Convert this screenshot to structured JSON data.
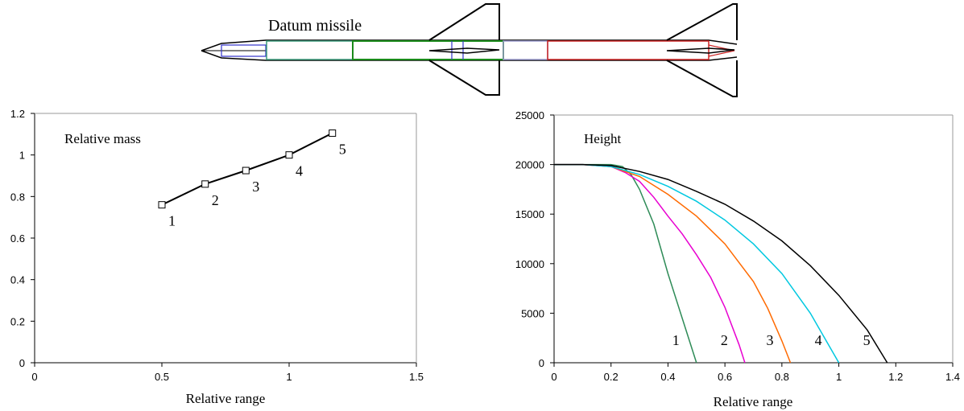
{
  "missile": {
    "title": "Datum missile",
    "colors": {
      "nose": "#3333cc",
      "section1": "#3a9a7a",
      "section2": "#1a8a1a",
      "section3": "#9999cc",
      "section4": "#cc2222",
      "outline": "#000000"
    }
  },
  "chart_data": [
    {
      "type": "line",
      "title": "Relative mass",
      "xlabel": "Relative range",
      "ylabel": "",
      "xlim": [
        0,
        1.5
      ],
      "ylim": [
        0,
        1.2
      ],
      "xticks": [
        "0",
        "0.5",
        "1",
        "1.5"
      ],
      "yticks": [
        "0",
        "0.2",
        "0.4",
        "0.6",
        "0.8",
        "1",
        "1.2"
      ],
      "grid": false,
      "marker": "square",
      "points": [
        {
          "label": "1",
          "x": 0.5,
          "y": 0.76
        },
        {
          "label": "2",
          "x": 0.67,
          "y": 0.86
        },
        {
          "label": "3",
          "x": 0.83,
          "y": 0.925
        },
        {
          "label": "4",
          "x": 1.0,
          "y": 1.0
        },
        {
          "label": "5",
          "x": 1.17,
          "y": 1.105
        }
      ]
    },
    {
      "type": "line",
      "title": "Height",
      "xlabel": "Relative range",
      "ylabel": "",
      "xlim": [
        0,
        1.4
      ],
      "ylim": [
        0,
        25000
      ],
      "xticks": [
        "0",
        "0.2",
        "0.4",
        "0.6",
        "0.8",
        "1",
        "1.2",
        "1.4"
      ],
      "yticks": [
        "0",
        "5000",
        "10000",
        "15000",
        "20000",
        "25000"
      ],
      "grid": false,
      "series": [
        {
          "label": "1",
          "color": "#2e8b57",
          "x": [
            0,
            0.1,
            0.2,
            0.24,
            0.27,
            0.3,
            0.35,
            0.4,
            0.45,
            0.5
          ],
          "y": [
            20000,
            20000,
            20000,
            19800,
            19000,
            17500,
            14000,
            9000,
            4500,
            0
          ]
        },
        {
          "label": "2",
          "color": "#e800d0",
          "x": [
            0,
            0.1,
            0.2,
            0.25,
            0.3,
            0.35,
            0.4,
            0.45,
            0.5,
            0.55,
            0.6,
            0.65,
            0.67
          ],
          "y": [
            20000,
            20000,
            19800,
            19200,
            18300,
            16700,
            14800,
            13000,
            10900,
            8600,
            5600,
            1800,
            0
          ]
        },
        {
          "label": "3",
          "color": "#ff6a00",
          "x": [
            0,
            0.1,
            0.2,
            0.3,
            0.4,
            0.5,
            0.6,
            0.7,
            0.75,
            0.8,
            0.83
          ],
          "y": [
            20000,
            20000,
            19800,
            18800,
            17000,
            14800,
            12000,
            8200,
            5500,
            2200,
            0
          ]
        },
        {
          "label": "4",
          "color": "#00c8e0",
          "x": [
            0,
            0.1,
            0.2,
            0.3,
            0.4,
            0.5,
            0.6,
            0.7,
            0.8,
            0.9,
            1.0
          ],
          "y": [
            20000,
            20000,
            19800,
            19000,
            17800,
            16300,
            14400,
            12000,
            9000,
            5000,
            0
          ]
        },
        {
          "label": "5",
          "color": "#000000",
          "x": [
            0,
            0.1,
            0.2,
            0.3,
            0.4,
            0.5,
            0.6,
            0.7,
            0.8,
            0.9,
            1.0,
            1.1,
            1.17
          ],
          "y": [
            20000,
            20000,
            19900,
            19300,
            18500,
            17300,
            16000,
            14300,
            12300,
            9800,
            6800,
            3300,
            0
          ]
        }
      ]
    }
  ]
}
